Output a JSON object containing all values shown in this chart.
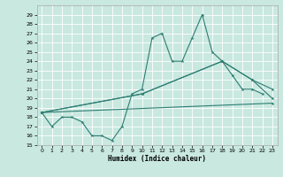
{
  "xlabel": "Humidex (Indice chaleur)",
  "ylim": [
    15,
    30
  ],
  "xlim": [
    -0.5,
    23.5
  ],
  "yticks": [
    15,
    16,
    17,
    18,
    19,
    20,
    21,
    22,
    23,
    24,
    25,
    26,
    27,
    28,
    29
  ],
  "xticks": [
    0,
    1,
    2,
    3,
    4,
    5,
    6,
    7,
    8,
    9,
    10,
    11,
    12,
    13,
    14,
    15,
    16,
    17,
    18,
    19,
    20,
    21,
    22,
    23
  ],
  "line_color": "#2d7d72",
  "bg_color": "#c8e8e0",
  "grid_color": "#ffffff",
  "curve1_x": [
    0,
    1,
    2,
    3,
    4,
    5,
    6,
    7,
    8,
    9,
    10,
    11,
    12,
    13,
    14,
    15,
    16,
    17,
    18,
    19,
    20,
    21,
    22
  ],
  "curve1_y": [
    18.5,
    17,
    18,
    18,
    17.5,
    16,
    16,
    15.5,
    17,
    20.5,
    21,
    26.5,
    27,
    24,
    24,
    26.5,
    29,
    25,
    24,
    22.5,
    21,
    21,
    20.5
  ],
  "curve2_x": [
    0,
    10,
    18,
    21,
    23
  ],
  "curve2_y": [
    18.5,
    20.5,
    24,
    22,
    21
  ],
  "curve3_x": [
    0,
    10,
    18,
    21,
    23
  ],
  "curve3_y": [
    18.5,
    20.5,
    24,
    22,
    20
  ],
  "curve4_x": [
    0,
    23
  ],
  "curve4_y": [
    18.5,
    19.5
  ]
}
